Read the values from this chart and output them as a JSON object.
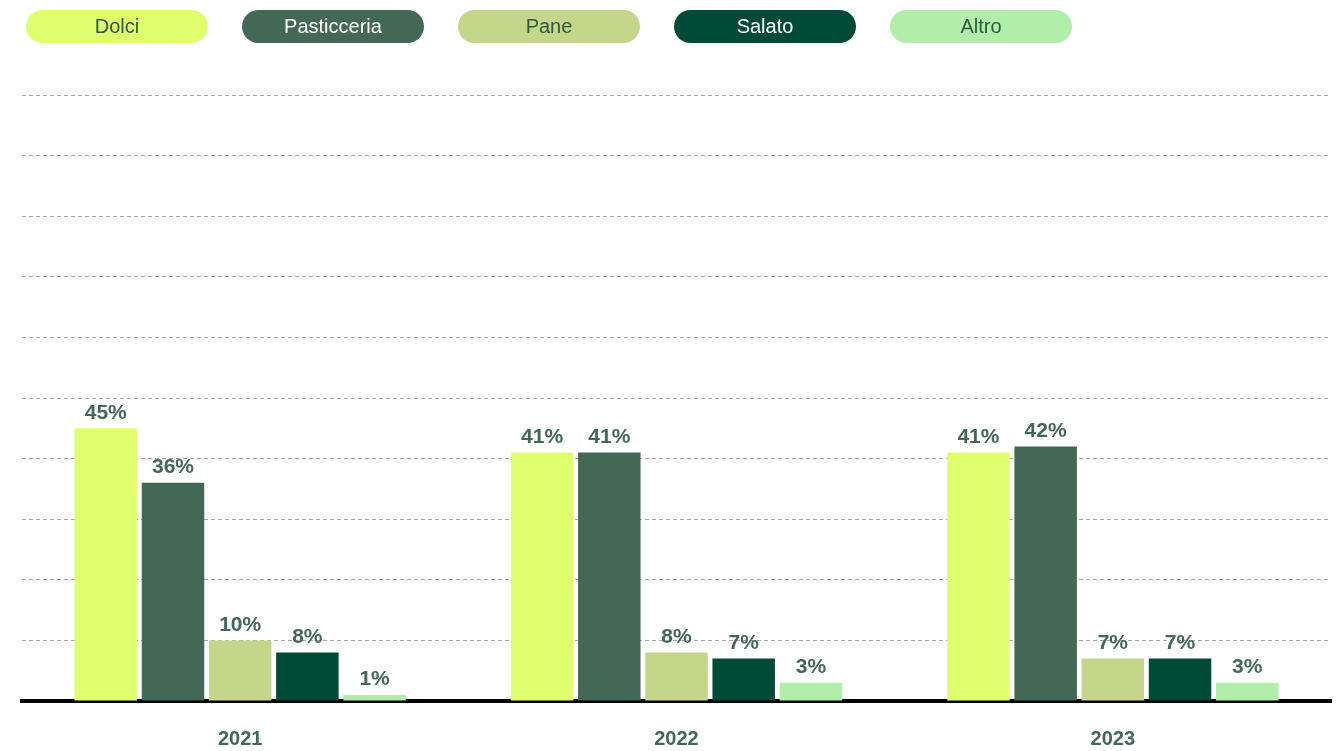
{
  "chart_data": {
    "type": "bar",
    "categories": [
      "2021",
      "2022",
      "2023"
    ],
    "series": [
      {
        "name": "Dolci",
        "color": "#e0ff6c",
        "values": [
          45,
          41,
          41
        ],
        "value_labels": [
          "45%",
          "41%",
          "41%"
        ]
      },
      {
        "name": "Pasticceria",
        "color": "#436856",
        "values": [
          36,
          41,
          42
        ],
        "value_labels": [
          "36%",
          "41%",
          "42%"
        ]
      },
      {
        "name": "Pane",
        "color": "#c4d68a",
        "values": [
          10,
          8,
          7
        ],
        "value_labels": [
          "10%",
          "8%",
          "7%"
        ]
      },
      {
        "name": "Salato",
        "color": "#004a38",
        "values": [
          8,
          7,
          7
        ],
        "value_labels": [
          "8%",
          "7%",
          "7%"
        ]
      },
      {
        "name": "Altro",
        "color": "#b0eeaa",
        "values": [
          1,
          3,
          3
        ],
        "value_labels": [
          "1%",
          "3%",
          "3%"
        ]
      }
    ],
    "ylim": [
      0,
      100
    ],
    "yticks": [
      {
        "value": 0,
        "label": null
      },
      {
        "value": 10,
        "label": null
      },
      {
        "value": 20,
        "label": null
      },
      {
        "value": 30,
        "label": null
      },
      {
        "value": 40,
        "label": null
      },
      {
        "value": 50,
        "label": null
      },
      {
        "value": 60,
        "label": null
      },
      {
        "value": 70,
        "label": null
      },
      {
        "value": 80,
        "label": null
      },
      {
        "value": 90,
        "label": null
      },
      {
        "value": 100,
        "label": null
      }
    ],
    "grid": "y",
    "legend": "top left",
    "tick_labels": "x"
  }
}
